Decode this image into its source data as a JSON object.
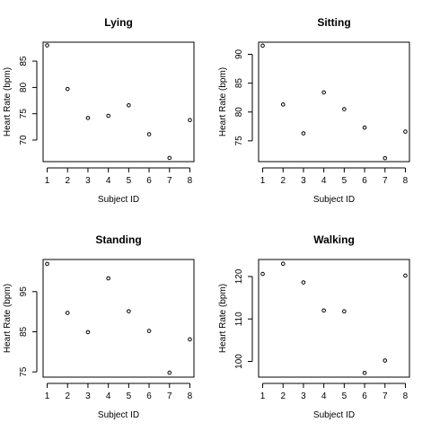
{
  "chart_data": [
    {
      "type": "scatter",
      "title": "Lying",
      "xlabel": "Subject ID",
      "ylabel": "Heart Rate (bpm)",
      "x": [
        1,
        2,
        3,
        4,
        5,
        6,
        7,
        8
      ],
      "y": [
        88,
        79.7,
        74.2,
        74.6,
        76.6,
        71.1,
        66.6,
        73.8
      ],
      "xticks": [
        1,
        2,
        3,
        4,
        5,
        6,
        7,
        8
      ],
      "yticks": [
        70,
        75,
        80,
        85
      ],
      "xlim": [
        0.8,
        8.2
      ],
      "ylim": [
        65.9,
        88.6
      ],
      "marker": "open-circle",
      "grid": false
    },
    {
      "type": "scatter",
      "title": "Sitting",
      "xlabel": "Subject ID",
      "ylabel": "Heart Rate (bpm)",
      "x": [
        1,
        2,
        3,
        4,
        5,
        6,
        7,
        8
      ],
      "y": [
        91.5,
        81.3,
        76.3,
        83.4,
        80.5,
        77.3,
        72,
        76.6
      ],
      "xticks": [
        1,
        2,
        3,
        4,
        5,
        6,
        7,
        8
      ],
      "yticks": [
        75,
        80,
        85,
        90
      ],
      "xlim": [
        0.8,
        8.2
      ],
      "ylim": [
        71.4,
        92.1
      ],
      "marker": "open-circle",
      "grid": false
    },
    {
      "type": "scatter",
      "title": "Standing",
      "xlabel": "Subject ID",
      "ylabel": "Heart Rate (bpm)",
      "x": [
        1,
        2,
        3,
        4,
        5,
        6,
        7,
        8
      ],
      "y": [
        101.9,
        89.7,
        84.9,
        98.3,
        90.1,
        85.2,
        74.8,
        83.1
      ],
      "xticks": [
        1,
        2,
        3,
        4,
        5,
        6,
        7,
        8
      ],
      "yticks": [
        75,
        85,
        95
      ],
      "xlim": [
        0.8,
        8.2
      ],
      "ylim": [
        73.7,
        103
      ],
      "marker": "open-circle",
      "grid": false
    },
    {
      "type": "scatter",
      "title": "Walking",
      "xlabel": "Subject ID",
      "ylabel": "Heart Rate (bpm)",
      "x": [
        1,
        2,
        3,
        4,
        5,
        6,
        7,
        8
      ],
      "y": [
        120.6,
        123,
        118.6,
        112,
        111.8,
        97.3,
        100.2,
        120.2
      ],
      "xticks": [
        1,
        2,
        3,
        4,
        5,
        6,
        7,
        8
      ],
      "yticks": [
        100,
        110,
        120
      ],
      "xlim": [
        0.8,
        8.2
      ],
      "ylim": [
        96.3,
        124
      ],
      "marker": "open-circle",
      "grid": false
    }
  ]
}
